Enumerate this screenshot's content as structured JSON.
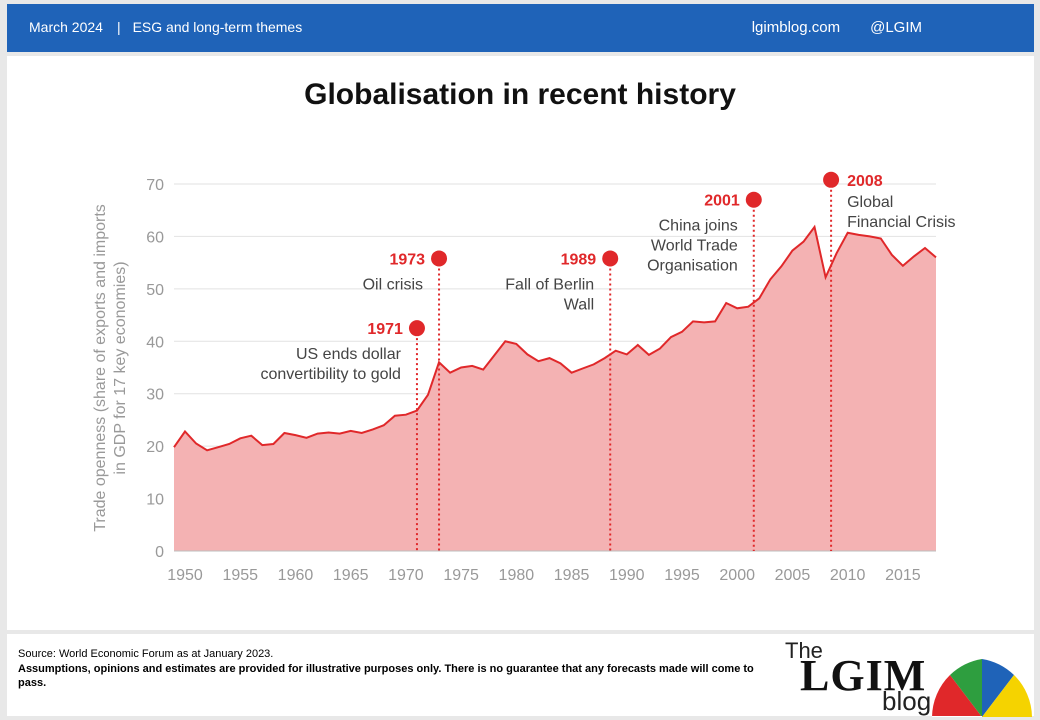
{
  "header": {
    "date": "March 2024",
    "separator": "|",
    "section": "ESG and long-term themes",
    "site": "lgimblog.com",
    "handle": "@LGIM"
  },
  "page_title": "Globalisation in recent history",
  "footer": {
    "source": "Source: World Economic Forum as at January 2023.",
    "disclaimer": "Assumptions, opinions and estimates are provided for illustrative purposes only. There is no guarantee that any forecasts made will come to pass.",
    "logo_the": "The",
    "logo_lgim": "LGIM",
    "logo_blog": "blog"
  },
  "colors": {
    "header_bg": "#1f63b8",
    "series_line": "#e0282a",
    "area_fill": "#f4b2b3",
    "annotation": "#e0282a",
    "axis_text": "#999999"
  },
  "chart_data": {
    "type": "area",
    "title": "Globalisation in recent history",
    "ylabel": "Trade openness  (share of exports and imports in GDP for 17 key economies)",
    "xlabel": "",
    "ylim": [
      0,
      70
    ],
    "yticks": [
      0,
      10,
      20,
      30,
      40,
      50,
      60,
      70
    ],
    "xlim": [
      1949,
      2018
    ],
    "xticks": [
      1950,
      1955,
      1960,
      1965,
      1970,
      1975,
      1980,
      1985,
      1990,
      1995,
      2000,
      2005,
      2010,
      2015
    ],
    "grid": true,
    "x": [
      1949,
      1950,
      1951,
      1952,
      1953,
      1954,
      1955,
      1956,
      1957,
      1958,
      1959,
      1960,
      1961,
      1962,
      1963,
      1964,
      1965,
      1966,
      1967,
      1968,
      1969,
      1970,
      1971,
      1972,
      1973,
      1974,
      1975,
      1976,
      1977,
      1978,
      1979,
      1980,
      1981,
      1982,
      1983,
      1984,
      1985,
      1986,
      1987,
      1988,
      1989,
      1990,
      1991,
      1992,
      1993,
      1994,
      1995,
      1996,
      1997,
      1998,
      1999,
      2000,
      2001,
      2002,
      2003,
      2004,
      2005,
      2006,
      2007,
      2008,
      2009,
      2010,
      2011,
      2012,
      2013,
      2014,
      2015,
      2016,
      2017,
      2018
    ],
    "y": [
      19.8,
      22.8,
      20.5,
      19.2,
      19.8,
      20.4,
      21.5,
      22.0,
      20.2,
      20.4,
      22.5,
      22.1,
      21.6,
      22.4,
      22.6,
      22.4,
      22.9,
      22.5,
      23.2,
      24.0,
      25.8,
      26.0,
      26.8,
      29.8,
      36.0,
      34.0,
      35.0,
      35.3,
      34.6,
      37.3,
      40.0,
      39.5,
      37.5,
      36.2,
      36.8,
      35.8,
      34.0,
      34.8,
      35.6,
      36.8,
      38.2,
      37.5,
      39.3,
      37.4,
      38.6,
      40.8,
      41.8,
      43.8,
      43.6,
      43.8,
      47.3,
      46.3,
      46.6,
      48.2,
      51.8,
      54.3,
      57.3,
      59.0,
      61.8,
      52.2,
      56.8,
      60.7,
      60.3,
      60.0,
      59.6,
      56.5,
      54.4,
      56.2,
      57.8,
      56.0
    ],
    "annotations": [
      {
        "year": "1971",
        "text_lines": [
          "US ends dollar",
          "convertibility to gold"
        ],
        "x": 1971,
        "marker_y": 42.5
      },
      {
        "year": "1973",
        "text_lines": [
          "Oil crisis"
        ],
        "x": 1973,
        "marker_y": 55.8
      },
      {
        "year": "1989",
        "text_lines": [
          "Fall of Berlin",
          "Wall"
        ],
        "x": 1988.5,
        "marker_y": 55.8
      },
      {
        "year": "2001",
        "text_lines": [
          "China joins",
          "World Trade",
          "Organisation"
        ],
        "x": 2001.5,
        "marker_y": 67.0
      },
      {
        "year": "2008",
        "text_lines": [
          "Global",
          "Financial Crisis"
        ],
        "x": 2008.5,
        "marker_y": 70.8
      }
    ]
  }
}
